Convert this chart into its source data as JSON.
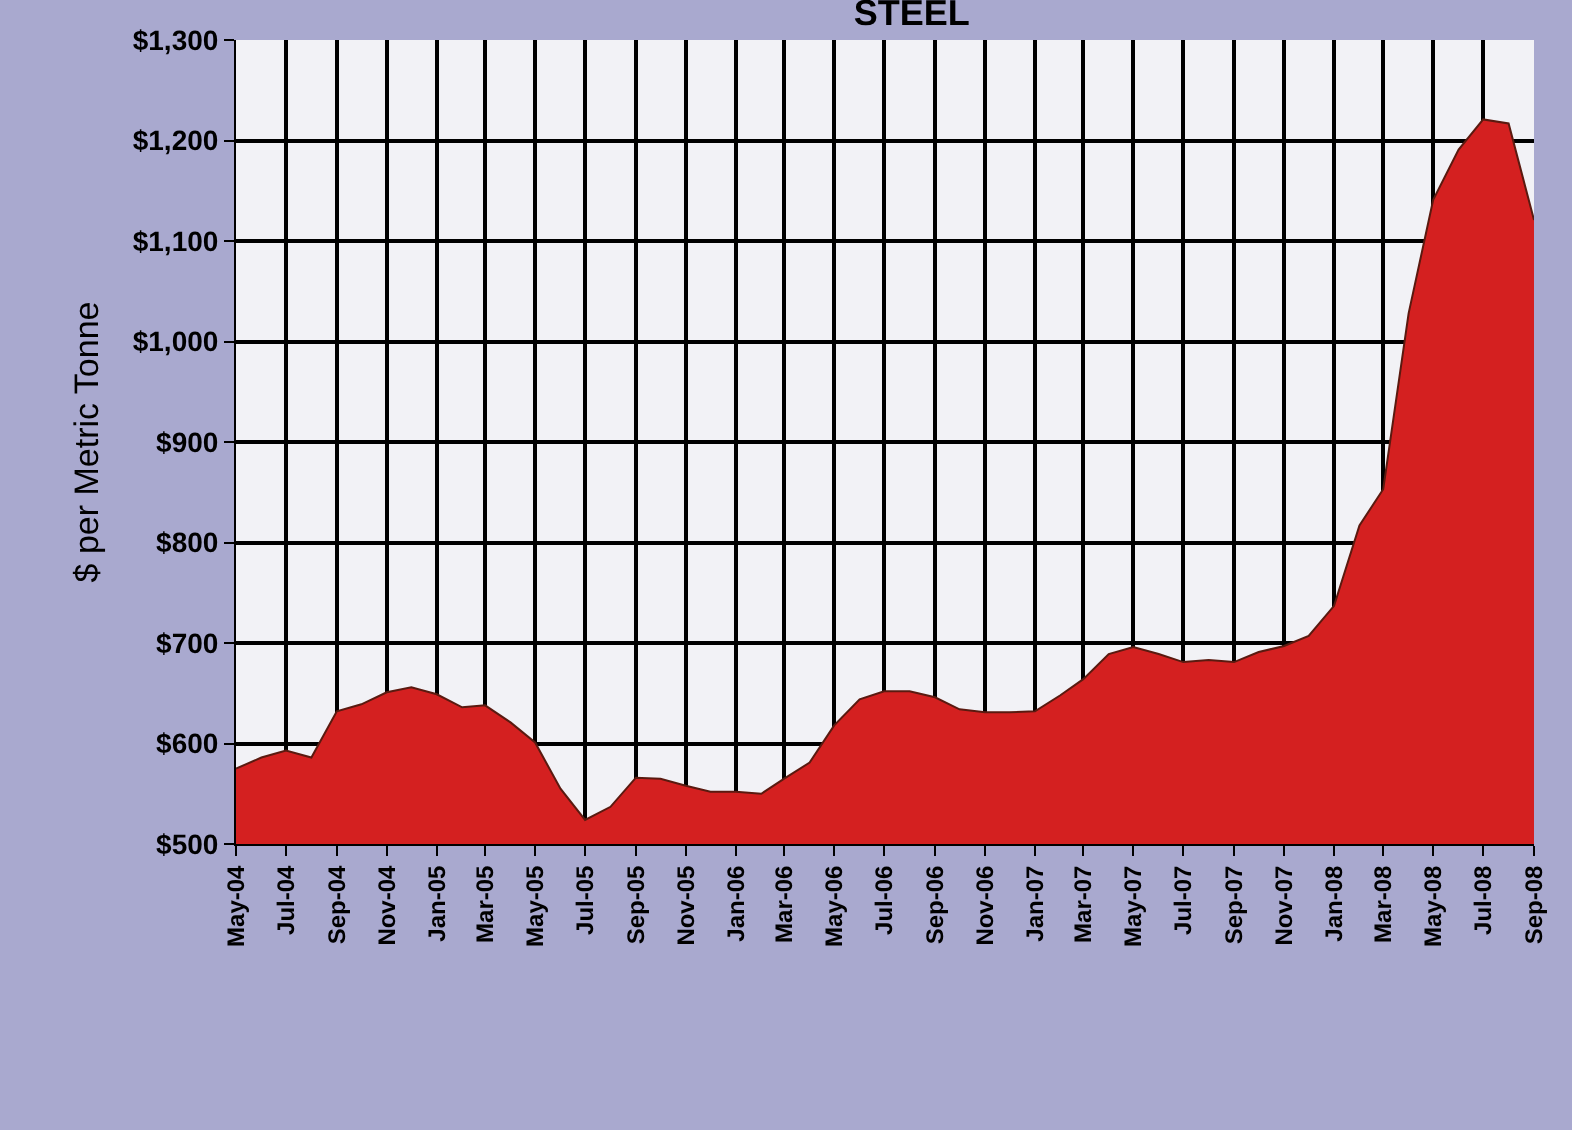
{
  "chart_data": {
    "type": "area",
    "title": "STEEL",
    "ylabel": "$ per Metric Tonne",
    "x": [
      "2004-05",
      "2004-06",
      "2004-07",
      "2004-08",
      "2004-09",
      "2004-10",
      "2004-11",
      "2004-12",
      "2005-01",
      "2005-02",
      "2005-03",
      "2005-04",
      "2005-05",
      "2005-06",
      "2005-07",
      "2005-08",
      "2005-09",
      "2005-10",
      "2005-11",
      "2005-12",
      "2006-01",
      "2006-02",
      "2006-03",
      "2006-04",
      "2006-05",
      "2006-06",
      "2006-07",
      "2006-08",
      "2006-09",
      "2006-10",
      "2006-11",
      "2006-12",
      "2007-01",
      "2007-02",
      "2007-03",
      "2007-04",
      "2007-05",
      "2007-06",
      "2007-07",
      "2007-08",
      "2007-09",
      "2007-10",
      "2007-11",
      "2007-12",
      "2008-01",
      "2008-02",
      "2008-03",
      "2008-04",
      "2008-05",
      "2008-06",
      "2008-07",
      "2008-08",
      "2008-09"
    ],
    "series": [
      {
        "color": "#d42020",
        "values": [
          575,
          586,
          593,
          586,
          632,
          639,
          651,
          656,
          649,
          636,
          638,
          621,
          601,
          555,
          524,
          537,
          566,
          565,
          558,
          552,
          552,
          550,
          565,
          581,
          618,
          644,
          652,
          652,
          646,
          634,
          631,
          631,
          632,
          648,
          664,
          689,
          696,
          689,
          681,
          683,
          681,
          691,
          697,
          707,
          737,
          817,
          853,
          1028,
          1141,
          1191,
          1221,
          1217,
          1121
        ]
      }
    ],
    "xlim": [
      "2004-05",
      "2008-09"
    ],
    "xticks": [
      {
        "value": "2004-05",
        "label": "May-04"
      },
      {
        "value": "2004-07",
        "label": "Jul-04"
      },
      {
        "value": "2004-09",
        "label": "Sep-04"
      },
      {
        "value": "2004-11",
        "label": "Nov-04"
      },
      {
        "value": "2005-01",
        "label": "Jan-05"
      },
      {
        "value": "2005-03",
        "label": "Mar-05"
      },
      {
        "value": "2005-05",
        "label": "May-05"
      },
      {
        "value": "2005-07",
        "label": "Jul-05"
      },
      {
        "value": "2005-09",
        "label": "Sep-05"
      },
      {
        "value": "2005-11",
        "label": "Nov-05"
      },
      {
        "value": "2006-01",
        "label": "Jan-06"
      },
      {
        "value": "2006-03",
        "label": "Mar-06"
      },
      {
        "value": "2006-05",
        "label": "May-06"
      },
      {
        "value": "2006-07",
        "label": "Jul-06"
      },
      {
        "value": "2006-09",
        "label": "Sep-06"
      },
      {
        "value": "2006-11",
        "label": "Nov-06"
      },
      {
        "value": "2007-01",
        "label": "Jan-07"
      },
      {
        "value": "2007-03",
        "label": "Mar-07"
      },
      {
        "value": "2007-05",
        "label": "May-07"
      },
      {
        "value": "2007-07",
        "label": "Jul-07"
      },
      {
        "value": "2007-09",
        "label": "Sep-07"
      },
      {
        "value": "2007-11",
        "label": "Nov-07"
      },
      {
        "value": "2008-01",
        "label": "Jan-08"
      },
      {
        "value": "2008-03",
        "label": "Mar-08"
      },
      {
        "value": "2008-05",
        "label": "May-08"
      },
      {
        "value": "2008-07",
        "label": "Jul-08"
      },
      {
        "value": "2008-09",
        "label": "Sep-08"
      }
    ],
    "ylim": [
      500,
      1300
    ],
    "yticks": [
      {
        "value": 500,
        "label": "$500"
      },
      {
        "value": 600,
        "label": "$600"
      },
      {
        "value": 700,
        "label": "$700"
      },
      {
        "value": 800,
        "label": "$800"
      },
      {
        "value": 900,
        "label": "$900"
      },
      {
        "value": 1000,
        "label": "$1,000"
      },
      {
        "value": 1100,
        "label": "$1,100"
      },
      {
        "value": 1200,
        "label": "$1,200"
      },
      {
        "value": 1300,
        "label": "$1,300"
      }
    ],
    "grid": true
  }
}
